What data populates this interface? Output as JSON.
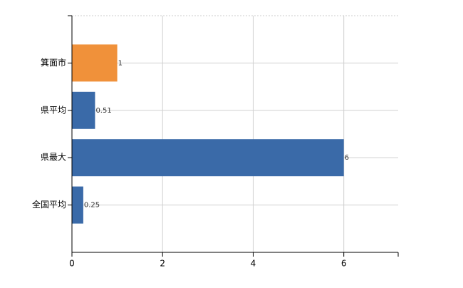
{
  "chart_data": {
    "type": "hbar",
    "categories": [
      "箕面市",
      "県平均",
      "県最大",
      "全国平均"
    ],
    "values": [
      1,
      0.51,
      6,
      0.25
    ],
    "colors": [
      "#f0913a",
      "#3a6aa8",
      "#3a6aa8",
      "#3a6aa8"
    ],
    "xlim": [
      0,
      7.2
    ],
    "xticks": [
      0,
      2,
      4,
      6
    ],
    "grid": true
  }
}
